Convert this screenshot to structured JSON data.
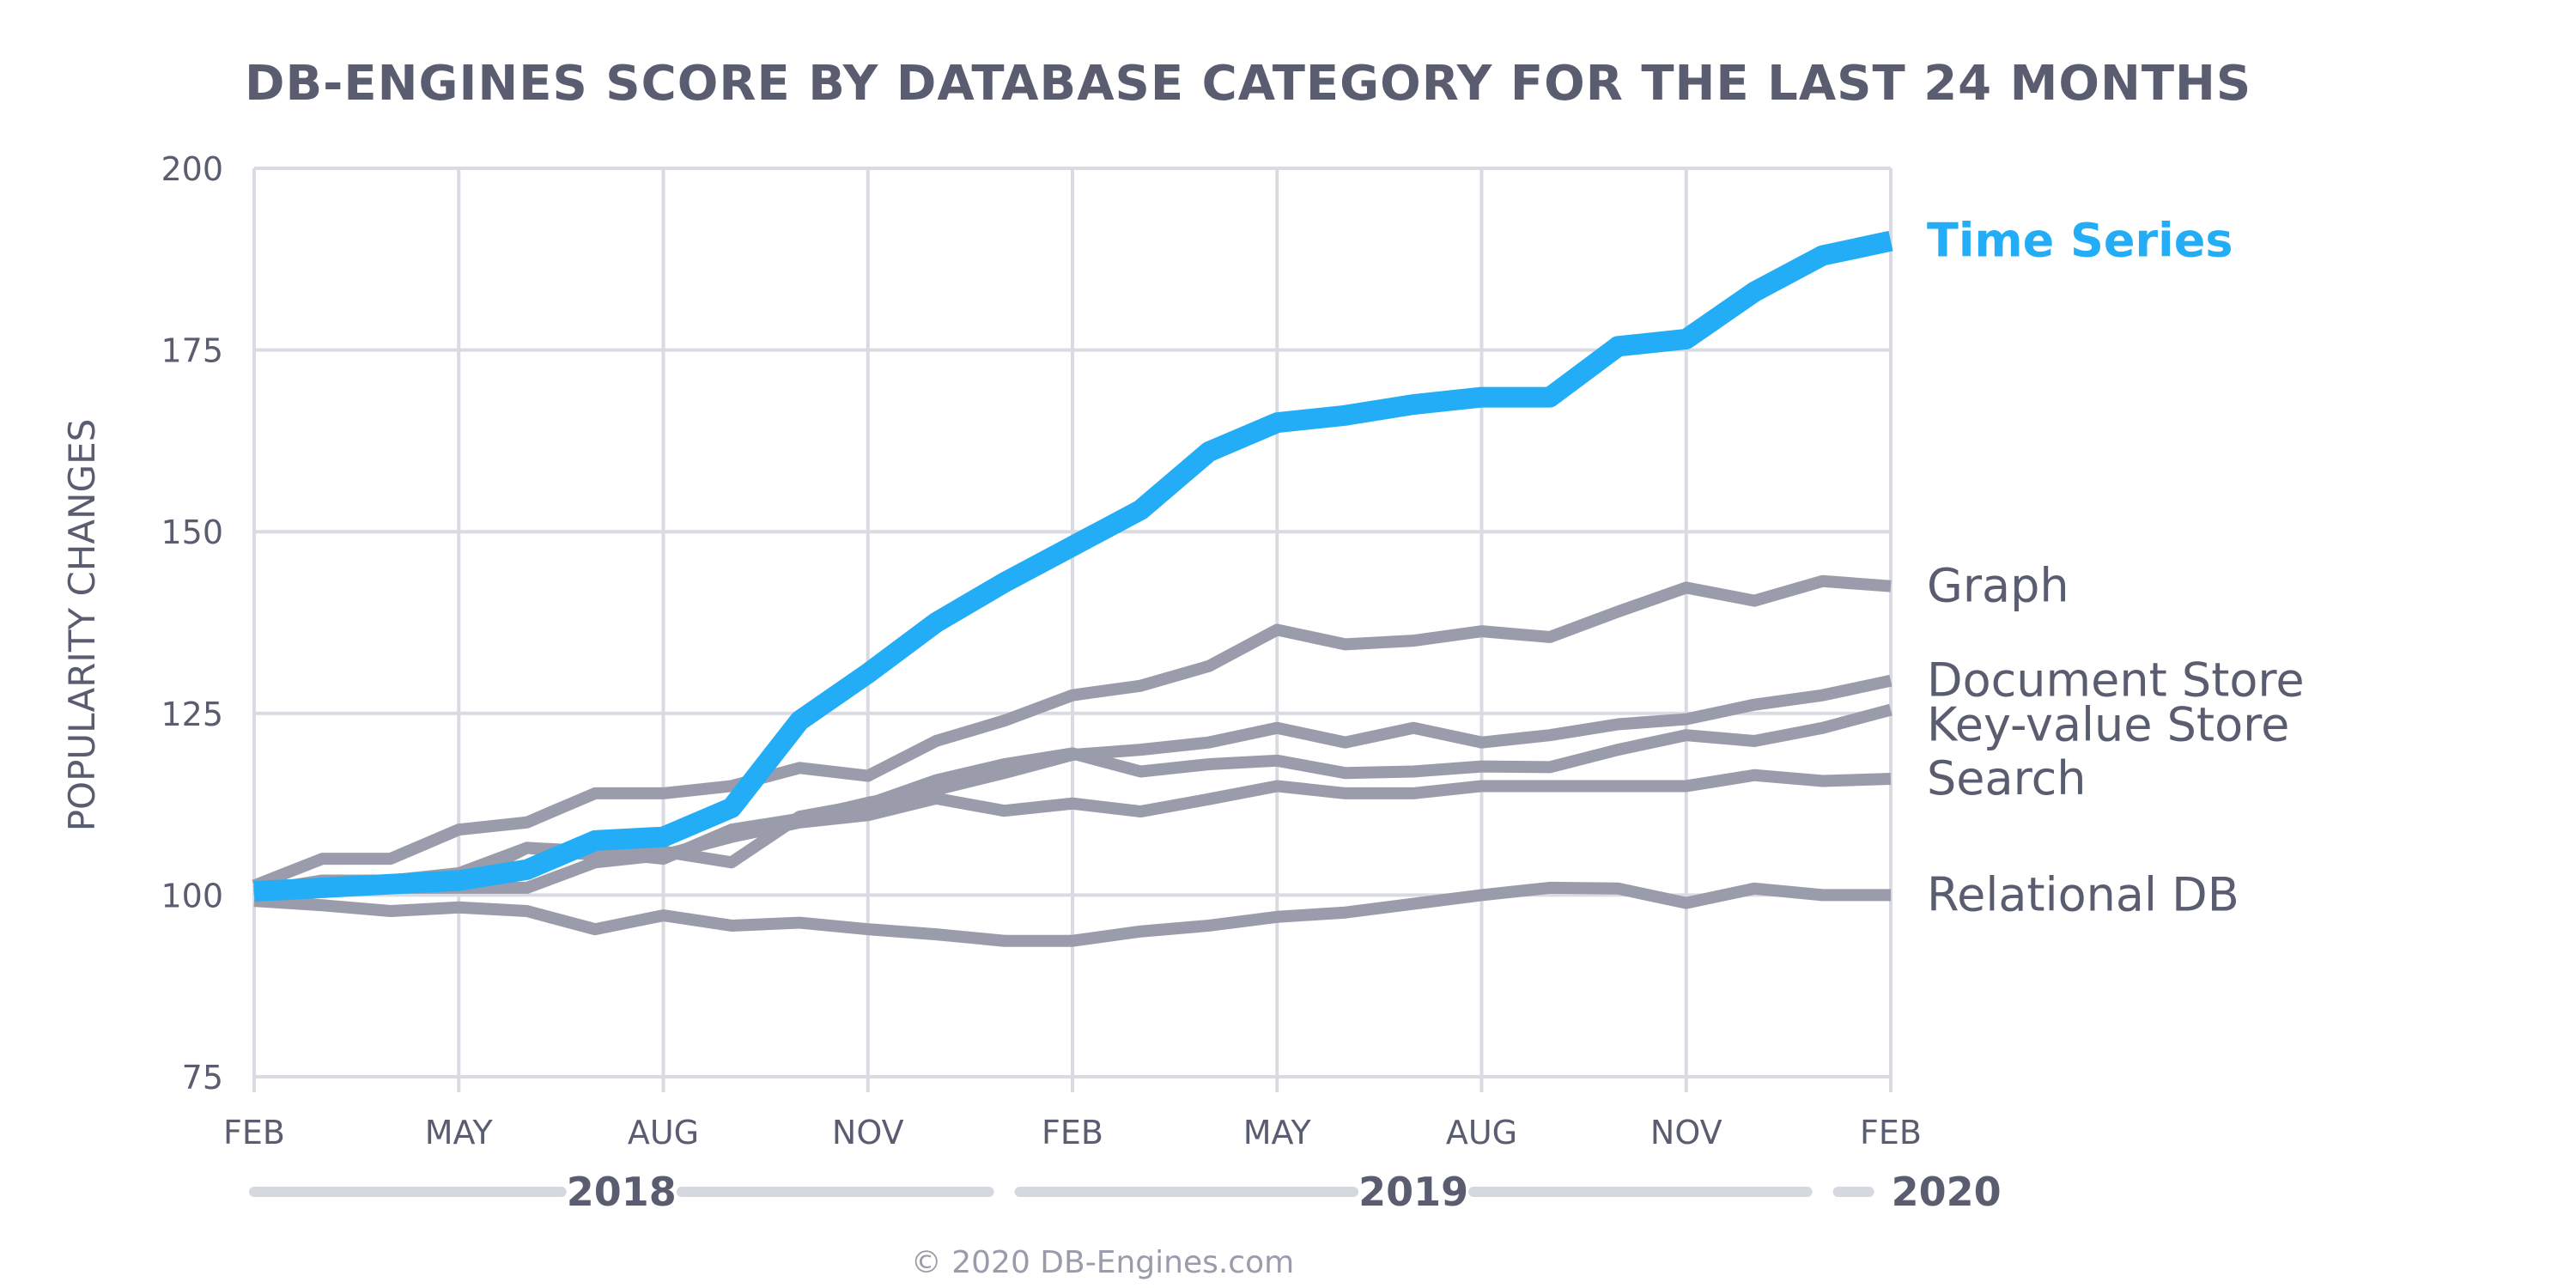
{
  "chart_data": {
    "type": "line",
    "title": "DB-ENGINES SCORE BY DATABASE CATEGORY FOR THE LAST 24 MONTHS",
    "ylabel": "POPULARITY CHANGES",
    "xlabel": "",
    "ylim": [
      75,
      200
    ],
    "yticks": [
      75,
      100,
      125,
      150,
      175,
      200
    ],
    "x_tick_labels": [
      "FEB",
      "MAY",
      "AUG",
      "NOV",
      "FEB",
      "MAY",
      "AUG",
      "NOV",
      "FEB"
    ],
    "x_tick_months": [
      0,
      3,
      6,
      9,
      12,
      15,
      18,
      21,
      24
    ],
    "x_range_months": [
      0,
      24
    ],
    "year_labels": [
      {
        "label": "2018",
        "from_month": 0,
        "to_month": 11
      },
      {
        "label": "2019",
        "from_month": 11,
        "to_month": 23
      },
      {
        "label": "2020",
        "from_month": 23,
        "to_month": 24
      }
    ],
    "grid": true,
    "x": [
      0,
      1,
      2,
      3,
      4,
      5,
      6,
      7,
      8,
      9,
      10,
      11,
      12,
      13,
      14,
      15,
      16,
      17,
      18,
      19,
      20,
      21,
      22,
      23,
      24
    ],
    "series": [
      {
        "name": "Relational DB",
        "highlight": false,
        "color": "#9a9cab",
        "values": [
          99.2,
          98.6,
          97.8,
          98.3,
          97.8,
          95.3,
          97.2,
          95.8,
          96.2,
          95.3,
          94.6,
          93.7,
          93.7,
          95.0,
          95.8,
          97.0,
          97.6,
          98.8,
          100.0,
          101.0,
          100.9,
          98.9,
          100.9,
          100.0,
          100.0
        ]
      },
      {
        "name": "Search",
        "highlight": false,
        "color": "#9a9cab",
        "values": [
          99.8,
          101.0,
          101.0,
          101.0,
          101.0,
          104.5,
          105.5,
          108.0,
          110.0,
          111.0,
          113.3,
          111.6,
          112.6,
          111.5,
          113.2,
          115.0,
          114.0,
          114.0,
          115.0,
          115.0,
          115.0,
          115.0,
          116.5,
          115.7,
          116.0
        ]
      },
      {
        "name": "Key-value Store",
        "highlight": false,
        "color": "#9a9cab",
        "values": [
          100.0,
          101.0,
          101.5,
          101.8,
          106.5,
          105.5,
          106.0,
          104.5,
          110.8,
          112.5,
          115.8,
          118.0,
          119.5,
          117.0,
          118.0,
          118.5,
          116.8,
          117.0,
          117.7,
          117.6,
          120.0,
          122.0,
          121.2,
          123.0,
          125.5
        ]
      },
      {
        "name": "Document Store",
        "highlight": false,
        "color": "#9a9cab",
        "values": [
          100.5,
          102.0,
          102.0,
          103.0,
          106.5,
          106.0,
          105.0,
          109.0,
          110.5,
          112.7,
          114.5,
          116.8,
          119.3,
          120.0,
          121.0,
          123.0,
          121.0,
          123.0,
          121.0,
          122.0,
          123.5,
          124.2,
          126.2,
          127.5,
          129.5
        ]
      },
      {
        "name": "Graph",
        "highlight": false,
        "color": "#9a9cab",
        "values": [
          101.3,
          105.0,
          105.0,
          109.0,
          110.0,
          114.0,
          114.0,
          115.0,
          117.5,
          116.4,
          121.2,
          124.0,
          127.5,
          128.8,
          131.5,
          136.5,
          134.5,
          135.0,
          136.3,
          135.5,
          139.0,
          142.3,
          140.5,
          143.2,
          142.5
        ]
      },
      {
        "name": "Time Series",
        "highlight": true,
        "color": "#22adf6",
        "values": [
          100.5,
          101.0,
          101.5,
          102.0,
          103.5,
          107.5,
          108.0,
          112.0,
          124.0,
          130.5,
          137.5,
          143.0,
          148.0,
          153.0,
          161.0,
          165.0,
          166.0,
          167.5,
          168.5,
          168.5,
          175.5,
          176.5,
          183.0,
          188.0,
          190.0
        ]
      }
    ]
  },
  "credit": "© 2020 DB-Engines.com"
}
